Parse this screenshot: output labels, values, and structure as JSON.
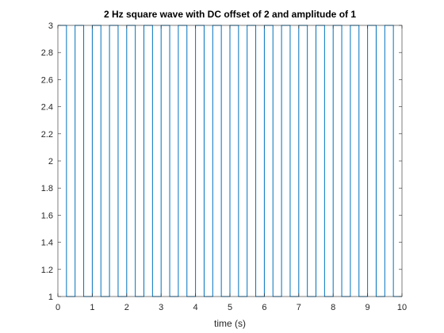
{
  "chart_data": {
    "type": "line",
    "title": "2 Hz square wave with DC offset of 2 and amplitude of 1",
    "xlabel": "time (s)",
    "ylabel": "",
    "xlim": [
      0,
      10
    ],
    "ylim": [
      1,
      3
    ],
    "xticks": [
      0,
      1,
      2,
      3,
      4,
      5,
      6,
      7,
      8,
      9,
      10
    ],
    "yticks": [
      1,
      1.2,
      1.4,
      1.6,
      1.8,
      2,
      2.2,
      2.4,
      2.6,
      2.8,
      3
    ],
    "xtick_labels": [
      "0",
      "1",
      "2",
      "3",
      "4",
      "5",
      "6",
      "7",
      "8",
      "9",
      "10"
    ],
    "ytick_labels": [
      "1",
      "1.2",
      "1.4",
      "1.6",
      "1.8",
      "2",
      "2.2",
      "2.4",
      "2.6",
      "2.8",
      "3"
    ],
    "grid": false,
    "box": true,
    "series": [
      {
        "color": "#0072BD",
        "waveform": "square",
        "frequency_hz": 2,
        "dc_offset": 2,
        "amplitude": 1,
        "duty_cycle": 0.5,
        "x_start": 0,
        "x_end": 10,
        "low": 1,
        "high": 3
      }
    ]
  }
}
